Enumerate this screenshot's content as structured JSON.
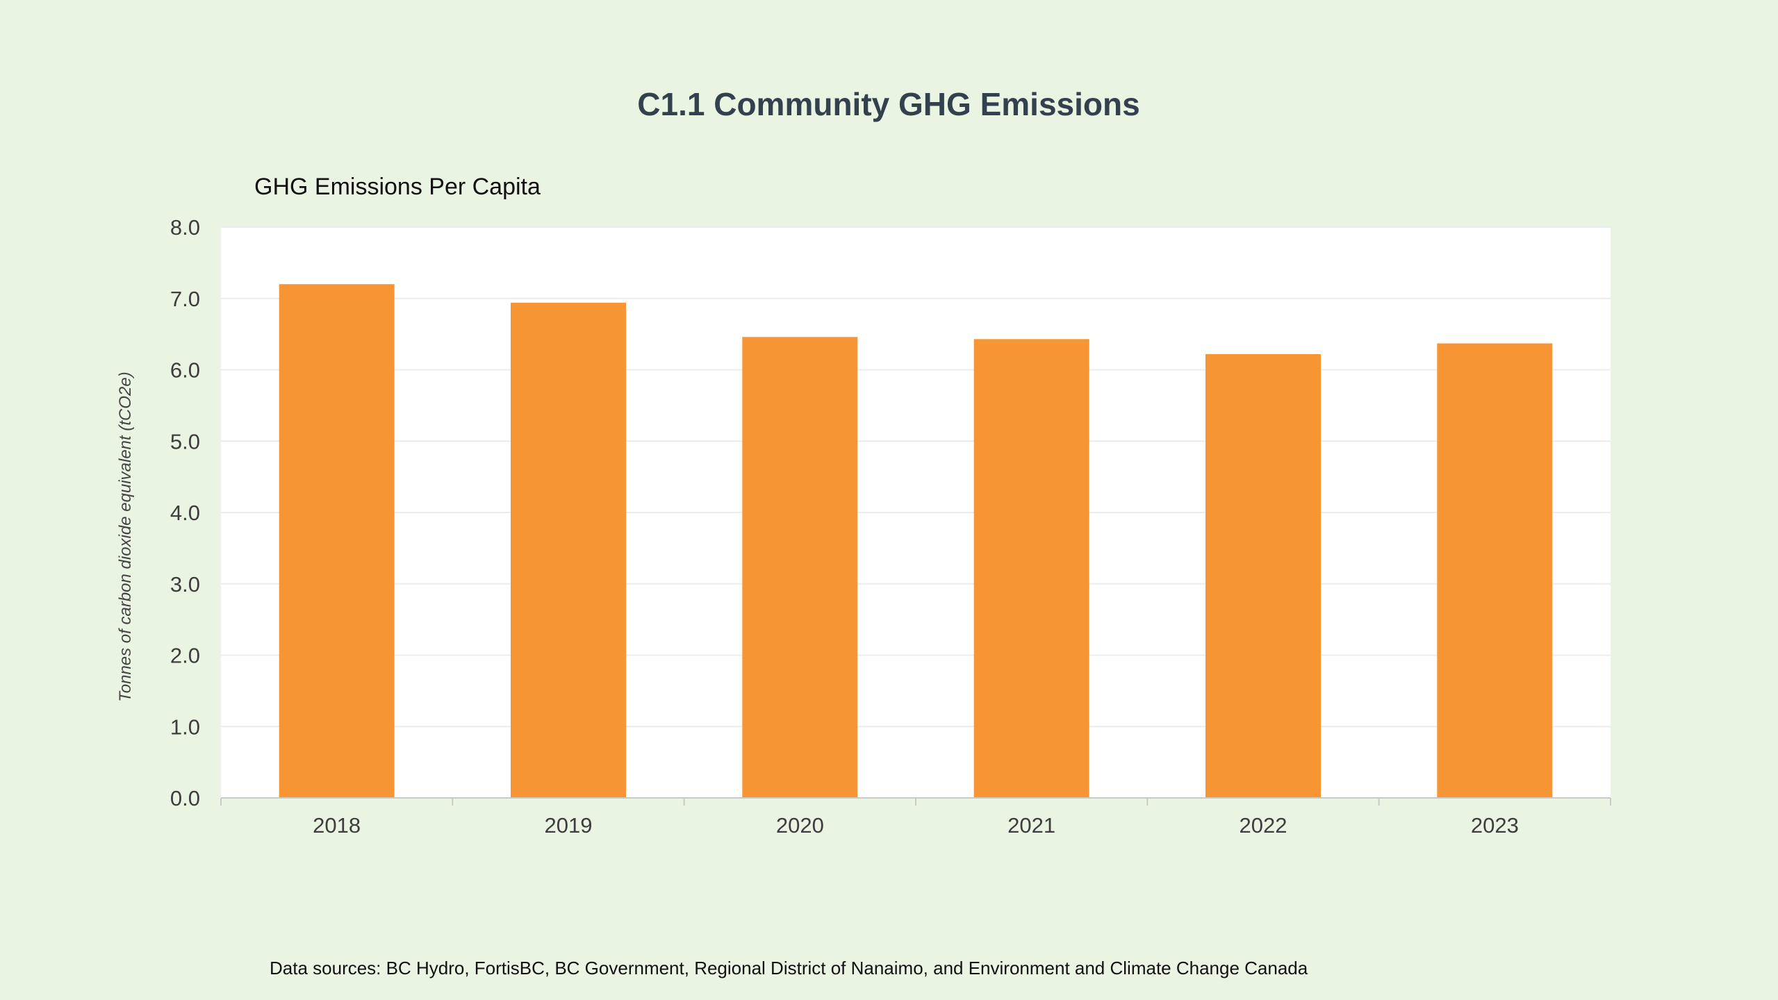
{
  "page": {
    "title": "C1.1 Community GHG Emissions",
    "source_note": "Data sources: BC Hydro, FortisBC, BC Government, Regional District of Nanaimo, and Environment and Climate Change Canada"
  },
  "chart_data": {
    "type": "bar",
    "subtitle": "GHG Emissions Per Capita",
    "ylabel": "Tonnes of carbon dioxide equivalent (tCO2e)",
    "xlabel": "",
    "categories": [
      "2018",
      "2019",
      "2020",
      "2021",
      "2022",
      "2023"
    ],
    "values": [
      7.2,
      6.94,
      6.46,
      6.43,
      6.22,
      6.37
    ],
    "ylim": [
      0,
      8
    ],
    "yticks": [
      "0.0",
      "1.0",
      "2.0",
      "3.0",
      "4.0",
      "5.0",
      "6.0",
      "7.0",
      "8.0"
    ],
    "grid": true,
    "legend": "none",
    "colors": {
      "bar": "#f79535",
      "plot_background": "#ffffff",
      "page_background": "#eaf4e3",
      "gridline": "#ececec",
      "title": "#33404d"
    }
  }
}
